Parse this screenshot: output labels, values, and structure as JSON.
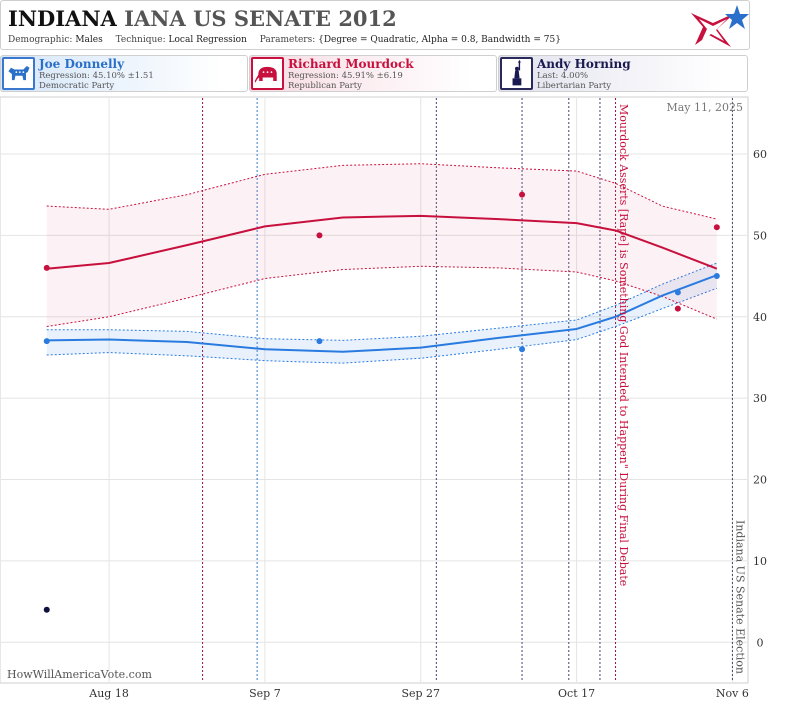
{
  "header": {
    "title_main": "INDIANA",
    "title_sub": "IANA US SENATE 2012",
    "demographic_label": "Demographic:",
    "demographic_value": "Males",
    "technique_label": "Technique:",
    "technique_value": "Local Regression",
    "parameters_label": "Parameters:",
    "parameters_value": "{Degree = Quadratic, Alpha = 0.8, Bandwidth = 75}"
  },
  "candidates": [
    {
      "name": "Joe Donnelly",
      "stat": "Regression: 45.10% ±1.51",
      "party": "Democratic Party",
      "color": "#2a6fc9",
      "icon": "donkey-icon"
    },
    {
      "name": "Richard Mourdock",
      "stat": "Regression: 45.91% ±6.19",
      "party": "Republican Party",
      "color": "#c8103e",
      "icon": "elephant-icon"
    },
    {
      "name": "Andy Horning",
      "stat": "Last: 4.00%",
      "party": "Libertarian Party",
      "color": "#1a1a50",
      "icon": "liberty-statue-icon"
    }
  ],
  "chart_data": {
    "type": "scatter",
    "date_stamp": "May 11, 2025",
    "credit": "HowWillAmericaVote.com",
    "x_ticks": [
      "Aug 18",
      "Sep 7",
      "Sep 27",
      "Oct 17",
      "Nov 6"
    ],
    "y_ticks": [
      0,
      10,
      20,
      30,
      40,
      50,
      60
    ],
    "ylim": [
      -5,
      67
    ],
    "xlim": [
      "2012-08-04",
      "2012-11-08"
    ],
    "grid": true,
    "series": [
      {
        "name": "Joe Donnelly",
        "color": "#2a7be0",
        "points": [
          {
            "date": "2012-08-10",
            "value": 37
          },
          {
            "date": "2012-09-14",
            "value": 37
          },
          {
            "date": "2012-10-10",
            "value": 36
          },
          {
            "date": "2012-10-30",
            "value": 43
          },
          {
            "date": "2012-11-04",
            "value": 45
          }
        ],
        "trend": [
          {
            "date": "2012-08-10",
            "value": 37.1,
            "lo": 35.3,
            "hi": 38.4
          },
          {
            "date": "2012-08-18",
            "value": 37.2,
            "lo": 35.6,
            "hi": 38.4
          },
          {
            "date": "2012-08-28",
            "value": 36.9,
            "lo": 35.2,
            "hi": 38.2
          },
          {
            "date": "2012-09-07",
            "value": 36.0,
            "lo": 34.6,
            "hi": 37.3
          },
          {
            "date": "2012-09-17",
            "value": 35.7,
            "lo": 34.3,
            "hi": 37.1
          },
          {
            "date": "2012-09-27",
            "value": 36.2,
            "lo": 34.9,
            "hi": 37.6
          },
          {
            "date": "2012-10-07",
            "value": 37.4,
            "lo": 36.0,
            "hi": 38.6
          },
          {
            "date": "2012-10-17",
            "value": 38.5,
            "lo": 37.2,
            "hi": 39.6
          },
          {
            "date": "2012-10-22",
            "value": 40.0,
            "lo": 38.8,
            "hi": 41.4
          },
          {
            "date": "2012-10-28",
            "value": 42.6,
            "lo": 41.0,
            "hi": 44.0
          },
          {
            "date": "2012-11-04",
            "value": 45.1,
            "lo": 43.5,
            "hi": 46.6
          }
        ]
      },
      {
        "name": "Richard Mourdock",
        "color": "#c8103e",
        "points": [
          {
            "date": "2012-08-10",
            "value": 46
          },
          {
            "date": "2012-09-14",
            "value": 50
          },
          {
            "date": "2012-10-10",
            "value": 55
          },
          {
            "date": "2012-10-30",
            "value": 41
          },
          {
            "date": "2012-11-04",
            "value": 51
          }
        ],
        "trend": [
          {
            "date": "2012-08-10",
            "value": 45.9,
            "lo": 38.8,
            "hi": 53.6
          },
          {
            "date": "2012-08-18",
            "value": 46.6,
            "lo": 40.0,
            "hi": 53.2
          },
          {
            "date": "2012-08-28",
            "value": 48.8,
            "lo": 42.3,
            "hi": 55.0
          },
          {
            "date": "2012-09-07",
            "value": 51.1,
            "lo": 44.7,
            "hi": 57.5
          },
          {
            "date": "2012-09-17",
            "value": 52.2,
            "lo": 45.8,
            "hi": 58.6
          },
          {
            "date": "2012-09-27",
            "value": 52.4,
            "lo": 46.2,
            "hi": 58.8
          },
          {
            "date": "2012-10-07",
            "value": 52.0,
            "lo": 46.0,
            "hi": 58.3
          },
          {
            "date": "2012-10-17",
            "value": 51.5,
            "lo": 45.5,
            "hi": 57.9
          },
          {
            "date": "2012-10-22",
            "value": 50.6,
            "lo": 44.4,
            "hi": 56.4
          },
          {
            "date": "2012-10-28",
            "value": 48.5,
            "lo": 42.5,
            "hi": 53.6
          },
          {
            "date": "2012-11-04",
            "value": 45.9,
            "lo": 39.7,
            "hi": 52.0
          }
        ]
      },
      {
        "name": "Andy Horning",
        "color": "#101040",
        "points": [
          {
            "date": "2012-08-10",
            "value": 4
          }
        ]
      }
    ],
    "event_lines": [
      {
        "date": "2012-08-30",
        "color": "#9a1040"
      },
      {
        "date": "2012-09-06",
        "color": "#3a78d0"
      },
      {
        "date": "2012-09-29",
        "color": "#444477"
      },
      {
        "date": "2012-10-10",
        "color": "#444477"
      },
      {
        "date": "2012-10-16",
        "color": "#444477"
      },
      {
        "date": "2012-10-20",
        "color": "#444477"
      },
      {
        "date": "2012-10-22",
        "color": "#9a1040"
      },
      {
        "date": "2012-11-06",
        "color": "#444477"
      }
    ],
    "annotations": [
      {
        "date": "2012-10-23",
        "text": "Mourdock Asserts [Rape] is Something God Intended to Happen\" During Final Debate",
        "color": "#c8103e"
      },
      {
        "date": "2012-11-07",
        "text": "Indiana US Senate Election",
        "color": "#555555"
      }
    ]
  }
}
